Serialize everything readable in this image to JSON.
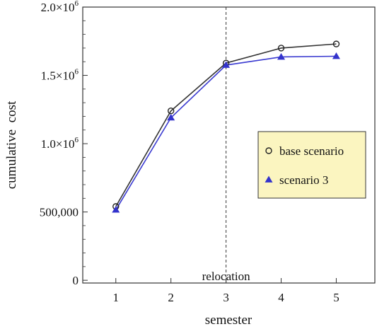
{
  "chart_data": {
    "type": "line",
    "title": "",
    "xlabel": "semester",
    "ylabel": "cumulative  cost",
    "x_ticks": [
      1,
      2,
      3,
      4,
      5
    ],
    "x_tick_labels": [
      "1",
      "2",
      "3",
      "4",
      "5"
    ],
    "xlim": [
      0.4,
      5.7
    ],
    "y_ticks": [
      0,
      500000,
      1000000,
      1500000,
      2000000
    ],
    "y_tick_labels": [
      {
        "value": 0,
        "base": "0",
        "exp": ""
      },
      {
        "value": 500000,
        "base": "500,000",
        "exp": ""
      },
      {
        "value": 1000000,
        "base": "1.0×10",
        "exp": "6"
      },
      {
        "value": 1500000,
        "base": "1.5×10",
        "exp": "6"
      },
      {
        "value": 2000000,
        "base": "2.0×10",
        "exp": "6"
      }
    ],
    "ylim": [
      -20000,
      2000000
    ],
    "grid": false,
    "legend_position": "right",
    "x": [
      1,
      2,
      3,
      4,
      5
    ],
    "series": [
      {
        "name": "base scenario",
        "marker": "circle",
        "line_color": "#333333",
        "marker_color": "#222222",
        "values": [
          540000,
          1240000,
          1590000,
          1700000,
          1730000
        ]
      },
      {
        "name": "scenario 3",
        "marker": "triangle",
        "line_color": "#3a3ad0",
        "marker_color": "#3333cc",
        "values": [
          515000,
          1190000,
          1575000,
          1635000,
          1640000
        ]
      }
    ],
    "annotations": [
      {
        "type": "vline",
        "x": 3,
        "style": "dashed",
        "label": "relocation",
        "label_y": 300000
      }
    ],
    "legend_bg": "#fbf5c0"
  }
}
